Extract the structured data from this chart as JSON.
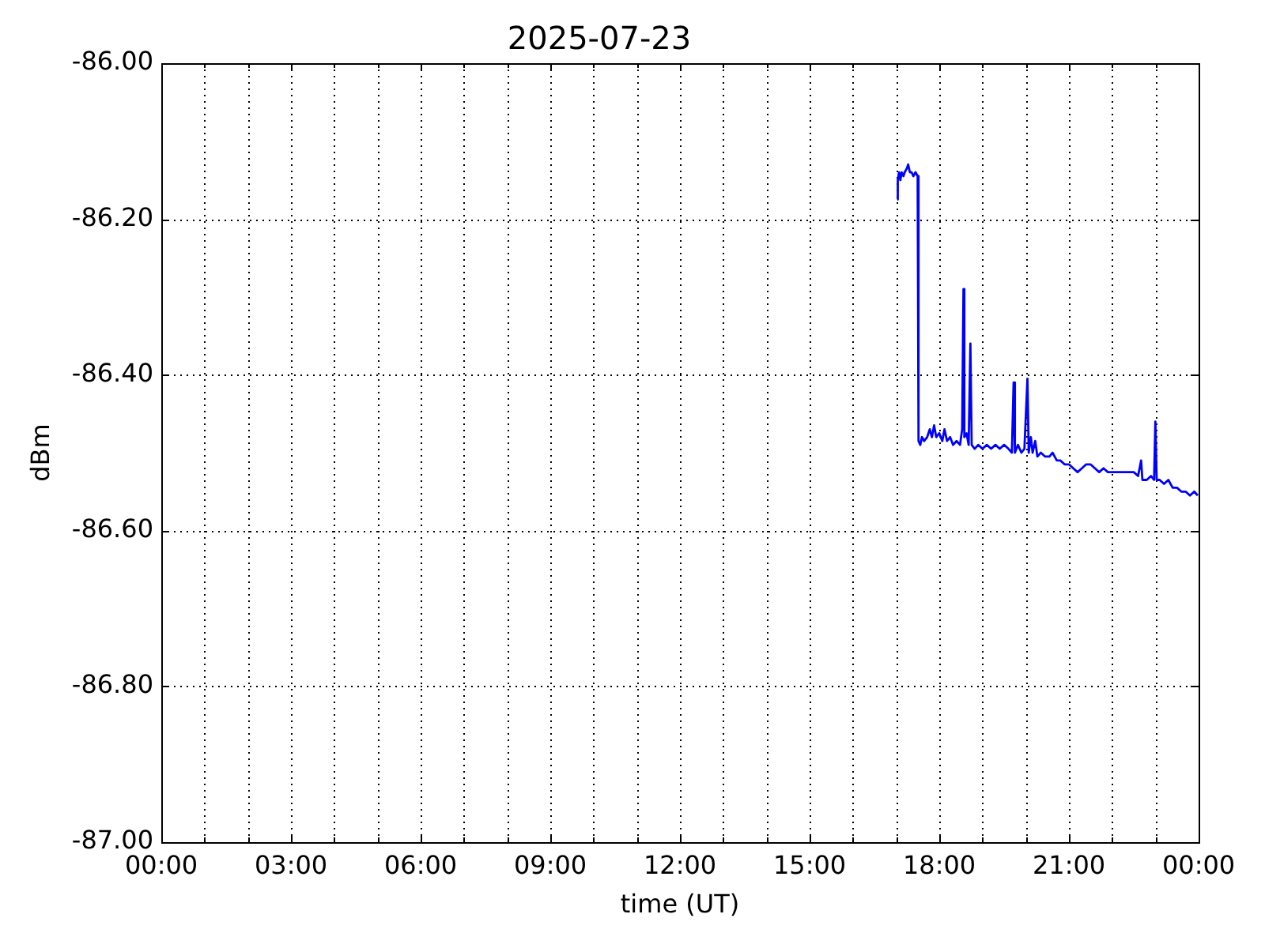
{
  "chart_data": {
    "type": "line",
    "title": "2025-07-23",
    "xlabel": "time (UT)",
    "ylabel": "dBm",
    "color": "#0000ff",
    "grid": true,
    "xlim": [
      0,
      24
    ],
    "ylim": [
      -87,
      -86
    ],
    "xticks": [
      {
        "value": 0,
        "label": "00:00"
      },
      {
        "value": 1,
        "label": null
      },
      {
        "value": 2,
        "label": null
      },
      {
        "value": 3,
        "label": "03:00"
      },
      {
        "value": 4,
        "label": null
      },
      {
        "value": 5,
        "label": null
      },
      {
        "value": 6,
        "label": "06:00"
      },
      {
        "value": 7,
        "label": null
      },
      {
        "value": 8,
        "label": null
      },
      {
        "value": 9,
        "label": "09:00"
      },
      {
        "value": 10,
        "label": null
      },
      {
        "value": 11,
        "label": null
      },
      {
        "value": 12,
        "label": "12:00"
      },
      {
        "value": 13,
        "label": null
      },
      {
        "value": 14,
        "label": null
      },
      {
        "value": 15,
        "label": "15:00"
      },
      {
        "value": 16,
        "label": null
      },
      {
        "value": 17,
        "label": null
      },
      {
        "value": 18,
        "label": "18:00"
      },
      {
        "value": 19,
        "label": null
      },
      {
        "value": 20,
        "label": null
      },
      {
        "value": 21,
        "label": "21:00"
      },
      {
        "value": 22,
        "label": null
      },
      {
        "value": 23,
        "label": null
      },
      {
        "value": 24,
        "label": "00:00"
      }
    ],
    "yticks": [
      {
        "value": -87,
        "label": "-87.00"
      },
      {
        "value": -86.8,
        "label": "-86.80"
      },
      {
        "value": -86.6,
        "label": "-86.60"
      },
      {
        "value": -86.4,
        "label": "-86.40"
      },
      {
        "value": -86.2,
        "label": "-86.20"
      },
      {
        "value": -86,
        "label": "-86.00"
      }
    ],
    "x": [
      17.03,
      17.04,
      17.07,
      17.1,
      17.13,
      17.17,
      17.2,
      17.25,
      17.28,
      17.32,
      17.36,
      17.4,
      17.45,
      17.5,
      17.52,
      17.56,
      17.6,
      17.65,
      17.72,
      17.78,
      17.83,
      17.88,
      17.93,
      18.0,
      18.07,
      18.12,
      18.18,
      18.25,
      18.32,
      18.4,
      18.48,
      18.53,
      18.56,
      18.58,
      18.63,
      18.68,
      18.72,
      18.75,
      18.82,
      18.9,
      19.0,
      19.1,
      19.2,
      19.3,
      19.4,
      19.5,
      19.6,
      19.68,
      19.72,
      19.75,
      19.82,
      19.9,
      19.97,
      20.04,
      20.07,
      20.12,
      20.16,
      20.22,
      20.27,
      20.35,
      20.45,
      20.55,
      20.62,
      20.72,
      20.8,
      20.9,
      21.0,
      21.1,
      21.2,
      21.3,
      21.4,
      21.5,
      21.6,
      21.7,
      21.8,
      21.9,
      22.0,
      22.1,
      22.2,
      22.3,
      22.4,
      22.5,
      22.6,
      22.67,
      22.7,
      22.8,
      22.9,
      22.97,
      23.0,
      23.03,
      23.1,
      23.2,
      23.3,
      23.4,
      23.5,
      23.6,
      23.7,
      23.8,
      23.9,
      23.98
    ],
    "values": [
      -86.175,
      -86.15,
      -86.14,
      -86.15,
      -86.14,
      -86.145,
      -86.14,
      -86.135,
      -86.13,
      -86.14,
      -86.14,
      -86.145,
      -86.14,
      -86.145,
      -86.485,
      -86.49,
      -86.48,
      -86.485,
      -86.48,
      -86.47,
      -86.48,
      -86.465,
      -86.48,
      -86.475,
      -86.485,
      -86.47,
      -86.485,
      -86.48,
      -86.49,
      -86.485,
      -86.49,
      -86.47,
      -86.29,
      -86.48,
      -86.475,
      -86.49,
      -86.36,
      -86.49,
      -86.495,
      -86.49,
      -86.495,
      -86.49,
      -86.495,
      -86.49,
      -86.495,
      -86.49,
      -86.495,
      -86.5,
      -86.41,
      -86.5,
      -86.49,
      -86.5,
      -86.495,
      -86.405,
      -86.5,
      -86.48,
      -86.5,
      -86.485,
      -86.505,
      -86.5,
      -86.505,
      -86.505,
      -86.5,
      -86.51,
      -86.51,
      -86.515,
      -86.515,
      -86.52,
      -86.525,
      -86.52,
      -86.515,
      -86.515,
      -86.52,
      -86.525,
      -86.52,
      -86.525,
      -86.525,
      -86.525,
      -86.525,
      -86.525,
      -86.525,
      -86.525,
      -86.53,
      -86.51,
      -86.535,
      -86.535,
      -86.53,
      -86.535,
      -86.46,
      -86.535,
      -86.535,
      -86.54,
      -86.535,
      -86.545,
      -86.545,
      -86.55,
      -86.55,
      -86.555,
      -86.55,
      -86.555
    ]
  }
}
